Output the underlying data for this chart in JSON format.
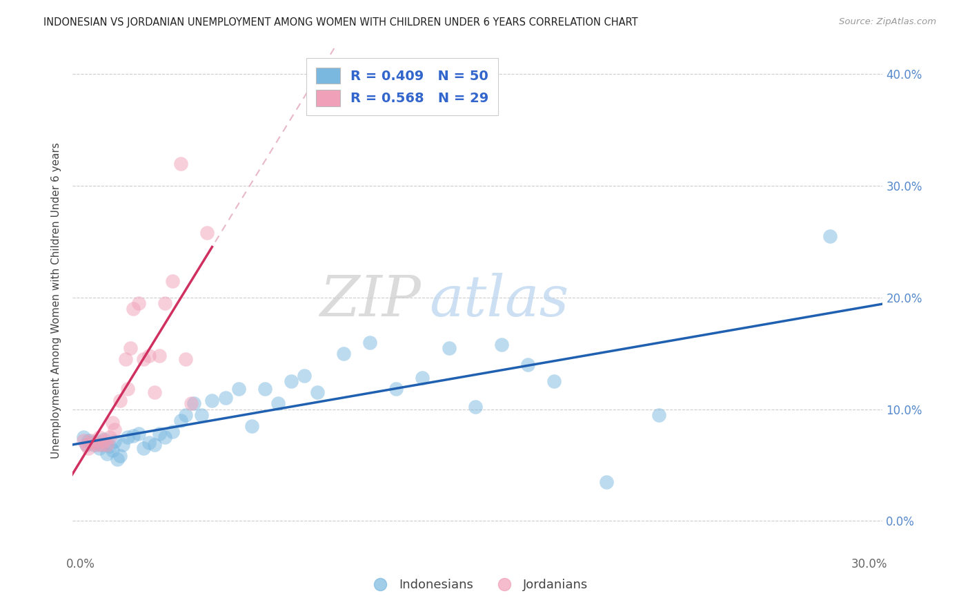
{
  "title": "INDONESIAN VS JORDANIAN UNEMPLOYMENT AMONG WOMEN WITH CHILDREN UNDER 6 YEARS CORRELATION CHART",
  "source": "Source: ZipAtlas.com",
  "ylabel": "Unemployment Among Women with Children Under 6 years",
  "legend_bottom": [
    "Indonesians",
    "Jordanians"
  ],
  "xlim": [
    -0.003,
    0.305
  ],
  "ylim": [
    -0.03,
    0.425
  ],
  "right_ytick_labels": [
    "0.0%",
    "10.0%",
    "20.0%",
    "30.0%",
    "40.0%"
  ],
  "right_ytick_vals": [
    0.0,
    0.1,
    0.2,
    0.3,
    0.4
  ],
  "xtick_vals": [
    0.0,
    0.05,
    0.1,
    0.15,
    0.2,
    0.25,
    0.3
  ],
  "xtick_labels": [
    "0.0%",
    "",
    "",
    "",
    "",
    "",
    "30.0%"
  ],
  "blue_color": "#7ab8e0",
  "pink_color": "#f0a0b8",
  "blue_line_color": "#2060b0",
  "pink_line_color": "#d03060",
  "pink_dashed_color": "#e8b8c8",
  "indo_x": [
    0.001,
    0.002,
    0.003,
    0.004,
    0.005,
    0.006,
    0.007,
    0.008,
    0.009,
    0.01,
    0.011,
    0.012,
    0.013,
    0.014,
    0.015,
    0.016,
    0.018,
    0.02,
    0.022,
    0.024,
    0.026,
    0.028,
    0.03,
    0.032,
    0.035,
    0.038,
    0.04,
    0.043,
    0.046,
    0.05,
    0.055,
    0.06,
    0.065,
    0.07,
    0.075,
    0.08,
    0.085,
    0.09,
    0.1,
    0.11,
    0.12,
    0.13,
    0.14,
    0.15,
    0.16,
    0.17,
    0.18,
    0.2,
    0.22,
    0.285
  ],
  "indo_y": [
    0.075,
    0.068,
    0.072,
    0.07,
    0.068,
    0.071,
    0.065,
    0.068,
    0.073,
    0.06,
    0.067,
    0.063,
    0.071,
    0.055,
    0.058,
    0.068,
    0.075,
    0.076,
    0.078,
    0.065,
    0.07,
    0.068,
    0.078,
    0.075,
    0.08,
    0.09,
    0.095,
    0.105,
    0.095,
    0.108,
    0.11,
    0.118,
    0.085,
    0.118,
    0.105,
    0.125,
    0.13,
    0.115,
    0.15,
    0.16,
    0.118,
    0.128,
    0.155,
    0.102,
    0.158,
    0.14,
    0.125,
    0.035,
    0.095,
    0.255
  ],
  "jord_x": [
    0.001,
    0.002,
    0.003,
    0.004,
    0.005,
    0.006,
    0.007,
    0.008,
    0.009,
    0.01,
    0.011,
    0.012,
    0.013,
    0.015,
    0.017,
    0.018,
    0.019,
    0.02,
    0.022,
    0.024,
    0.026,
    0.028,
    0.03,
    0.032,
    0.035,
    0.038,
    0.04,
    0.042,
    0.048
  ],
  "jord_y": [
    0.072,
    0.068,
    0.065,
    0.072,
    0.07,
    0.068,
    0.075,
    0.068,
    0.072,
    0.068,
    0.075,
    0.088,
    0.082,
    0.108,
    0.145,
    0.118,
    0.155,
    0.19,
    0.195,
    0.145,
    0.148,
    0.115,
    0.148,
    0.195,
    0.215,
    0.32,
    0.145,
    0.105,
    0.258
  ],
  "watermark_zip": "ZIP",
  "watermark_atlas": "atlas",
  "background_color": "#ffffff",
  "grid_color": "#cccccc"
}
